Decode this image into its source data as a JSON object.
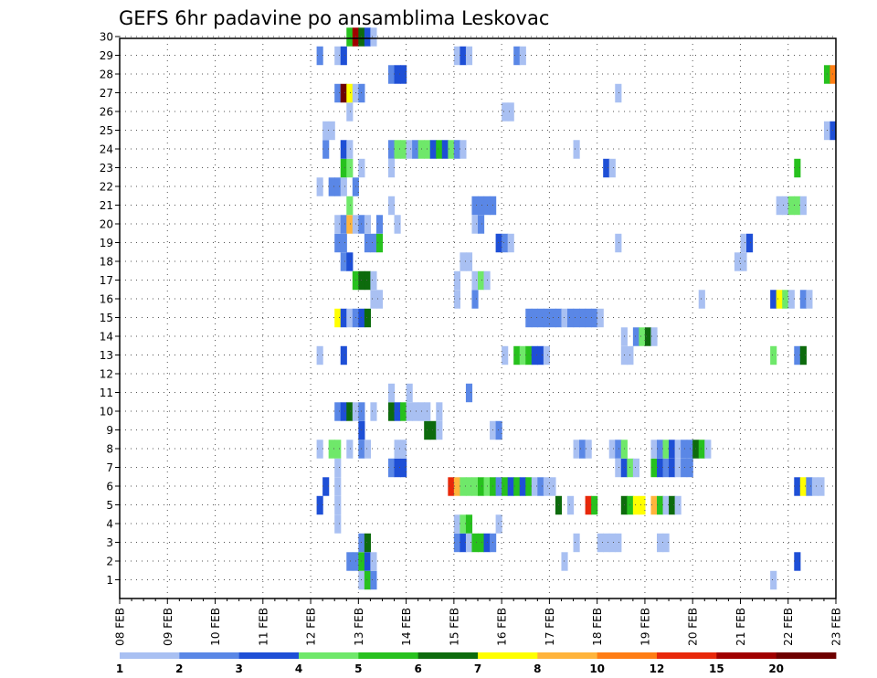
{
  "chart_data": {
    "type": "heatmap",
    "title": "GEFS 6hr padavine po ansamblima Leskovac",
    "xlabel": "",
    "ylabel": "",
    "x_ticks": [
      "08 FEB",
      "09 FEB",
      "10 FEB",
      "11 FEB",
      "12 FEB",
      "13 FEB",
      "14 FEB",
      "15 FEB",
      "16 FEB",
      "17 FEB",
      "18 FEB",
      "19 FEB",
      "20 FEB",
      "21 FEB",
      "22 FEB",
      "23 FEB"
    ],
    "y_ticks": [
      "1",
      "2",
      "3",
      "4",
      "5",
      "6",
      "7",
      "8",
      "9",
      "10",
      "11",
      "12",
      "13",
      "14",
      "15",
      "16",
      "17",
      "18",
      "19",
      "20",
      "21",
      "22",
      "23",
      "24",
      "25",
      "26",
      "27",
      "28",
      "29",
      "30"
    ],
    "grid": true,
    "colorbar": {
      "labels": [
        "1",
        "2",
        "3",
        "4",
        "5",
        "6",
        "7",
        "8",
        "10",
        "12",
        "15",
        "20"
      ],
      "colors": [
        "#a9c0f2",
        "#5a87e6",
        "#1e4fd6",
        "#6fe86a",
        "#27c11e",
        "#0d6b0d",
        "#ffff00",
        "#ffb43c",
        "#ff7d14",
        "#e8280a",
        "#a00000",
        "#6e0000"
      ]
    },
    "cells": [
      {
        "x": "15 FEB 00",
        "y": 29,
        "v": 1
      }
    ]
  }
}
